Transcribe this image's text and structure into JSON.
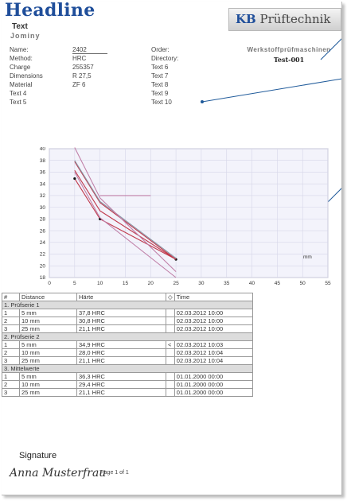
{
  "header": {
    "headline": "Headline",
    "subtitle1": "Text",
    "subtitle2": "Jominy"
  },
  "logo": {
    "brand_kb": "KB",
    "brand_rest": "Prüftechnik",
    "tagline": "Werkstoffprüfmaschinen",
    "test_id": "Test-001"
  },
  "fields_left": [
    {
      "label": "Name:",
      "value": "2402"
    },
    {
      "label": "Method:",
      "value": "HRC"
    },
    {
      "label": "Charge",
      "value": "255357"
    },
    {
      "label": "Dimensions",
      "value": "R 27,5"
    },
    {
      "label": "Material",
      "value": "ZF 6"
    },
    {
      "label": "Text 4",
      "value": ""
    },
    {
      "label": "Text 5",
      "value": ""
    }
  ],
  "fields_right": [
    {
      "label": "Order:",
      "value": ""
    },
    {
      "label": "Directory:",
      "value": ""
    },
    {
      "label": "Text 6",
      "value": ""
    },
    {
      "label": "Text 7",
      "value": ""
    },
    {
      "label": "Text 8",
      "value": ""
    },
    {
      "label": "Text 9",
      "value": ""
    },
    {
      "label": "Text 10",
      "value": ""
    }
  ],
  "chart_data": {
    "type": "line",
    "xlabel": "mm",
    "xlim": [
      0,
      55
    ],
    "ylim": [
      18,
      40
    ],
    "xticks": [
      0,
      5,
      10,
      15,
      20,
      25,
      30,
      35,
      40,
      45,
      50,
      55
    ],
    "yticks": [
      18,
      20,
      22,
      24,
      26,
      28,
      30,
      32,
      34,
      36,
      38,
      40
    ],
    "grid": true,
    "colors": {
      "bg": "#f3f3fb",
      "grid": "#d6d6e8",
      "red": "#c0394b",
      "pink": "#c080a8",
      "blue": "#5a78b8",
      "gray": "#8a9aa8"
    },
    "series": [
      {
        "color": "#c0394b",
        "x": [
          5,
          10,
          25
        ],
        "y": [
          34.9,
          28.0,
          21.1
        ],
        "markers": true
      },
      {
        "color": "#c0394b",
        "x": [
          5,
          10,
          25
        ],
        "y": [
          36.3,
          29.4,
          21.1
        ],
        "markers": false
      },
      {
        "color": "#c0394b",
        "x": [
          5,
          10,
          25
        ],
        "y": [
          37.8,
          30.8,
          21.1
        ],
        "markers": false
      },
      {
        "color": "#8a9aa8",
        "x": [
          5,
          10,
          25
        ],
        "y": [
          38.0,
          31.0,
          21.3
        ],
        "markers": false
      },
      {
        "color": "#c080a8",
        "x": [
          5,
          10,
          25
        ],
        "y": [
          40.2,
          31.6,
          19.0
        ],
        "markers": false
      },
      {
        "color": "#c080a8",
        "x": [
          5,
          10,
          25
        ],
        "y": [
          36.0,
          28.2,
          18.0
        ],
        "markers": false
      },
      {
        "color": "#c080a8",
        "x": [
          10,
          20
        ],
        "y": [
          32.0,
          32.0
        ],
        "markers": false
      }
    ]
  },
  "table": {
    "headers": [
      "#",
      "Distance",
      "Härte",
      "◇",
      "Time"
    ],
    "groups": [
      {
        "title": "1. Prüfserie 1",
        "rows": [
          [
            "1",
            "5 mm",
            "37,8 HRC",
            "",
            "02.03.2012 10:00"
          ],
          [
            "2",
            "10 mm",
            "30,8 HRC",
            "",
            "02.03.2012 10:00"
          ],
          [
            "3",
            "25 mm",
            "21,1 HRC",
            "",
            "02.03.2012 10:00"
          ]
        ]
      },
      {
        "title": "2. Prüfserie 2",
        "rows": [
          [
            "1",
            "5 mm",
            "34,9 HRC",
            "<",
            "02.03.2012 10:03"
          ],
          [
            "2",
            "10 mm",
            "28,0 HRC",
            "",
            "02.03.2012 10:04"
          ],
          [
            "3",
            "25 mm",
            "21,1 HRC",
            "",
            "02.03.2012 10:04"
          ]
        ]
      },
      {
        "title": "3. Mittelwerte",
        "rows": [
          [
            "1",
            "5 mm",
            "36,3 HRC",
            "",
            "01.01.2000 00:00"
          ],
          [
            "2",
            "10 mm",
            "29,4 HRC",
            "",
            "01.01.2000 00:00"
          ],
          [
            "3",
            "25 mm",
            "21,1 HRC",
            "",
            "01.01.2000 00:00"
          ]
        ]
      }
    ]
  },
  "footer": {
    "signature_label": "Signature",
    "signature_name": "Anna Musterfrau",
    "page_text": "Page 1 of 1"
  }
}
